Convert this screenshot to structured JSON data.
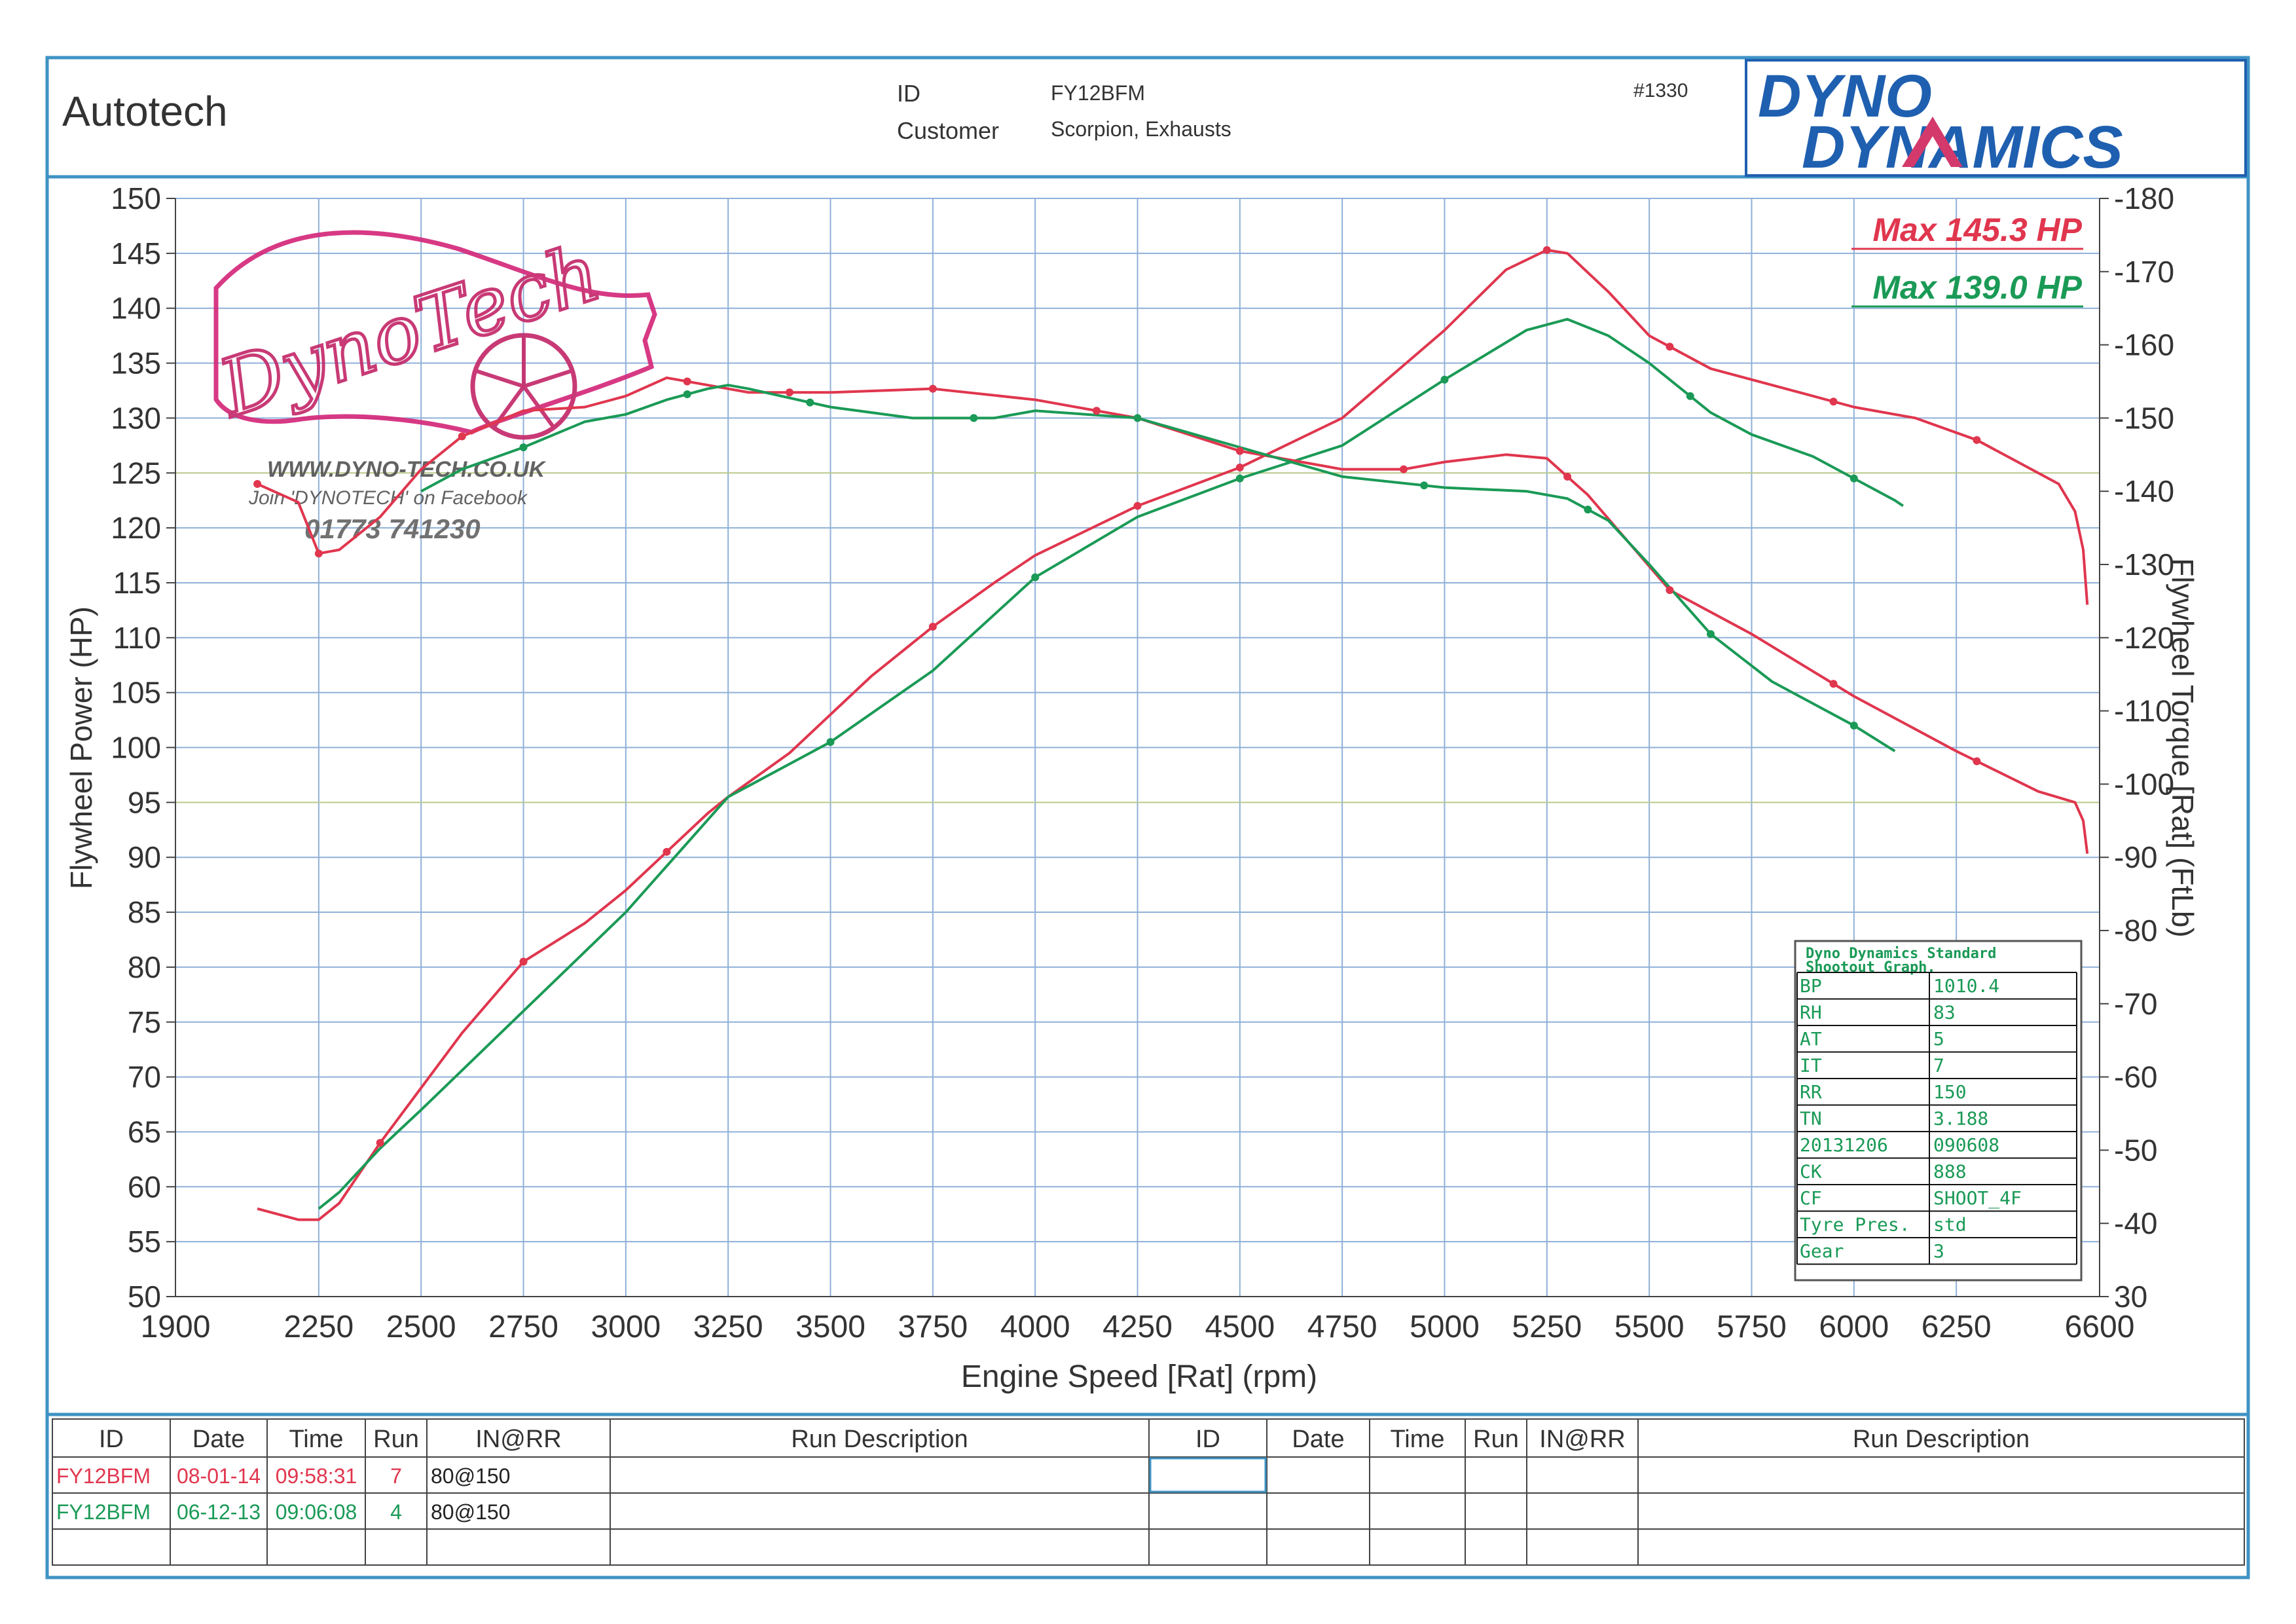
{
  "header": {
    "company": "Autotech",
    "id_label": "ID",
    "id_value": "FY12BFM",
    "customer_label": "Customer",
    "customer_value": "Scorpion, Exhausts",
    "sheet_number": "#1330",
    "logo_line1": "DYNO",
    "logo_line2": "DYNAMICS"
  },
  "watermark": {
    "brand": "DynoTech",
    "website": "WWW.DYNO-TECH.CO.UK",
    "facebook": "Join 'DYNOTECH' on Facebook",
    "phone": "01773 741230"
  },
  "max_labels": [
    {
      "text": "Max 145.3 HP",
      "color": "#e0364e"
    },
    {
      "text": "Max 139.0 HP",
      "color": "#1a9a56"
    }
  ],
  "colors": {
    "frame_blue": "#3f93c4",
    "grid_blue": "#8fb0d8",
    "grid_mid": "#b9c98a",
    "run7": "#e0364e",
    "run4": "#1a9a56",
    "logo_blue": "#1f5fb0",
    "logo_pink": "#d33a6b"
  },
  "chart_data": {
    "type": "line",
    "xlabel": "Engine Speed [Rat] (rpm)",
    "ylabel": "Flywheel Power (HP)",
    "y2label": "Flywheel Torque [Rat] (FtLb)",
    "xlim": [
      1900,
      6600
    ],
    "ylim": [
      50,
      150
    ],
    "y2lim": [
      30,
      180
    ],
    "xticks": [
      1900,
      2250,
      2500,
      2750,
      3000,
      3250,
      3500,
      3750,
      4000,
      4250,
      4500,
      4750,
      5000,
      5250,
      5500,
      5750,
      6000,
      6250,
      6600
    ],
    "yticks": [
      50,
      55,
      60,
      65,
      70,
      75,
      80,
      85,
      90,
      95,
      100,
      105,
      110,
      115,
      120,
      125,
      130,
      135,
      140,
      145,
      150
    ],
    "y2ticks": [
      30,
      40,
      50,
      60,
      70,
      80,
      90,
      100,
      110,
      120,
      130,
      140,
      150,
      160,
      170,
      180
    ],
    "grid": true,
    "series": [
      {
        "run": "7",
        "quantity": "power",
        "axis": "left",
        "color": "#e0364e",
        "x": [
          2100,
          2200,
          2250,
          2300,
          2400,
          2500,
          2600,
          2750,
          2900,
          3000,
          3100,
          3200,
          3250,
          3400,
          3500,
          3600,
          3750,
          3900,
          4000,
          4250,
          4500,
          4750,
          5000,
          5150,
          5250,
          5300,
          5400,
          5500,
          5650,
          5750,
          5900,
          6000,
          6150,
          6300,
          6500,
          6540,
          6560,
          6570
        ],
        "y": [
          58,
          57,
          57,
          58.5,
          64,
          69,
          74,
          80.5,
          84,
          87,
          90.5,
          94,
          95.5,
          99.5,
          103,
          106.5,
          111,
          115,
          117.5,
          122,
          125.5,
          130,
          138,
          143.5,
          145.3,
          145,
          141.5,
          137.5,
          134.5,
          133.5,
          132,
          131,
          130,
          128,
          124,
          121.5,
          118,
          113
        ]
      },
      {
        "run": "4",
        "quantity": "power",
        "axis": "left",
        "color": "#1a9a56",
        "x": [
          2250,
          2300,
          2400,
          2500,
          2750,
          3000,
          3250,
          3500,
          3750,
          4000,
          4250,
          4500,
          4750,
          5000,
          5200,
          5300,
          5400,
          5500,
          5650,
          5750,
          5900,
          6000,
          6100,
          6120
        ],
        "y": [
          58,
          59.5,
          63.5,
          67,
          76,
          85,
          95.5,
          100.5,
          107,
          115.5,
          121,
          124.5,
          127.5,
          133.5,
          138,
          139,
          137.5,
          135,
          130.5,
          128.5,
          126.5,
          124.5,
          122.5,
          122
        ]
      },
      {
        "run": "7",
        "quantity": "torque",
        "axis": "right",
        "color": "#e0364e",
        "x": [
          2100,
          2200,
          2250,
          2300,
          2400,
          2500,
          2600,
          2750,
          2900,
          3000,
          3100,
          3200,
          3300,
          3500,
          3750,
          4000,
          4250,
          4500,
          4750,
          4900,
          5000,
          5150,
          5250,
          5350,
          5450,
          5550,
          5750,
          6000,
          6250,
          6450,
          6540,
          6560,
          6570
        ],
        "y": [
          141,
          138.5,
          131.5,
          132,
          136.5,
          143,
          147.5,
          151,
          151.5,
          153,
          155.5,
          154.5,
          153.5,
          153.5,
          154,
          152.5,
          150,
          145.5,
          143,
          143,
          144,
          145,
          144.5,
          139.5,
          133,
          126.5,
          120.5,
          112,
          104.5,
          99,
          97.5,
          95,
          90.5
        ]
      },
      {
        "run": "4",
        "quantity": "torque",
        "axis": "right",
        "color": "#1a9a56",
        "x": [
          2500,
          2600,
          2750,
          2900,
          3000,
          3100,
          3200,
          3250,
          3300,
          3500,
          3700,
          3900,
          4000,
          4250,
          4500,
          4750,
          5000,
          5200,
          5300,
          5400,
          5500,
          5650,
          5800,
          6000,
          6100
        ],
        "y": [
          140,
          143,
          146,
          149.5,
          150.5,
          152.5,
          154,
          154.5,
          154,
          151.5,
          150,
          150,
          151,
          150,
          146,
          142,
          140.5,
          140,
          139,
          136,
          130,
          120.5,
          114,
          108,
          104.5
        ]
      }
    ],
    "marker_points": [
      {
        "series": 0,
        "x": [
          2400,
          2750,
          3100,
          3750,
          4250,
          4500,
          5250,
          5550,
          5950,
          6300
        ]
      },
      {
        "series": 1,
        "x": [
          3500,
          4000,
          4500,
          5000,
          5600,
          6000
        ]
      },
      {
        "series": 2,
        "x": [
          2100,
          2250,
          2600,
          3150,
          3400,
          3750,
          4150,
          4500,
          4900,
          5300,
          5550,
          5950,
          6300
        ]
      },
      {
        "series": 3,
        "x": [
          2750,
          3150,
          3450,
          3850,
          4250,
          4950,
          5350,
          5650,
          6000
        ]
      }
    ]
  },
  "conditions": {
    "title_line1": "Dyno Dynamics Standard",
    "title_line2": "Shootout Graph.",
    "rows": [
      {
        "k": "BP",
        "v": "1010.4"
      },
      {
        "k": "RH",
        "v": "83"
      },
      {
        "k": "AT",
        "v": "5"
      },
      {
        "k": "IT",
        "v": "7"
      },
      {
        "k": "RR",
        "v": "150"
      },
      {
        "k": "TN",
        "v": "3.188"
      },
      {
        "k": "20131206",
        "v": "090608"
      },
      {
        "k": "CK",
        "v": "888"
      },
      {
        "k": "CF",
        "v": "SHOOT_4F"
      },
      {
        "k": "Tyre Pres.",
        "v": "std"
      },
      {
        "k": "Gear",
        "v": "3"
      }
    ]
  },
  "run_table": {
    "headers": [
      "ID",
      "Date",
      "Time",
      "Run",
      "IN@RR",
      "Run Description",
      "ID",
      "Date",
      "Time",
      "Run",
      "IN@RR",
      "Run Description"
    ],
    "rows": [
      {
        "id": "FY12BFM",
        "date": "08-01-14",
        "time": "09:58:31",
        "run": "7",
        "inrr": "80@150",
        "color": "#e0364e"
      },
      {
        "id": "FY12BFM",
        "date": "06-12-13",
        "time": "09:06:08",
        "run": "4",
        "inrr": "80@150",
        "color": "#1a9a56"
      }
    ]
  }
}
